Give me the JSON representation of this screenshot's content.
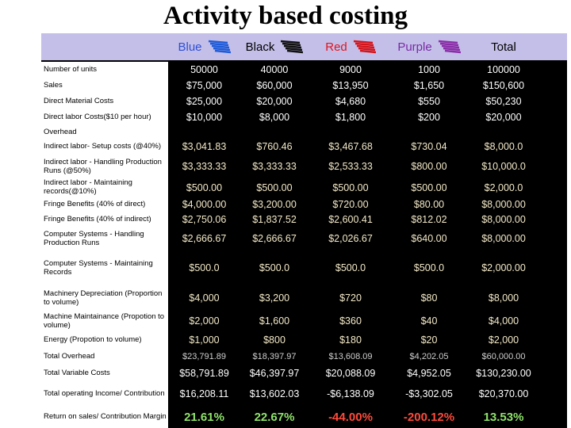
{
  "title": "Activity based costing",
  "table": {
    "header": [
      "Blue",
      "Black",
      "Red",
      "Purple",
      "Total"
    ],
    "rows": [
      {
        "label": "Number of units",
        "values": [
          "50000",
          "40000",
          "9000",
          "1000",
          "100000"
        ]
      },
      {
        "label": "Sales",
        "values": [
          "$75,000",
          "$60,000",
          "$13,950",
          "$1,650",
          "$150,600"
        ]
      },
      {
        "label": "Direct Material Costs",
        "values": [
          "$25,000",
          "$20,000",
          "$4,680",
          "$550",
          "$50,230"
        ]
      },
      {
        "label": "Direct labor Costs($10 per hour)",
        "values": [
          "$10,000",
          "$8,000",
          "$1,800",
          "$200",
          "$20,000"
        ]
      },
      {
        "label": "Overhead"
      },
      {
        "label": "Indirect labor- Setup costs (@40%)",
        "values": [
          "$3,041.83",
          "$760.46",
          "$3,467.68",
          "$730.04",
          "$8,000.0"
        ]
      },
      {
        "label": "Indirect labor - Handling Production Runs (@50%)",
        "values": [
          "$3,333.33",
          "$3,333.33",
          "$2,533.33",
          "$800.00",
          "$10,000.0"
        ]
      },
      {
        "label": "Indirect labor - Maintaining records(@10%)",
        "values": [
          "$500.00",
          "$500.00",
          "$500.00",
          "$500.00",
          "$2,000.0"
        ]
      },
      {
        "label": "Fringe Benefits (40% of direct)",
        "values": [
          "$4,000.00",
          "$3,200.00",
          "$720.00",
          "$80.00",
          "$8,000.00"
        ]
      },
      {
        "label": "Fringe Benefits (40% of indirect)",
        "values": [
          "$2,750.06",
          "$1,837.52",
          "$2,600.41",
          "$812.02",
          "$8,000.00"
        ]
      },
      {
        "label": "Computer Systems - Handling Production Runs",
        "values": [
          "$2,666.67",
          "$2,666.67",
          "$2,026.67",
          "$640.00",
          "$8,000.00"
        ]
      },
      {
        "label": "Computer Systems - Maintaining Records",
        "values": [
          "$500.0",
          "$500.0",
          "$500.0",
          "$500.0",
          "$2,000.00"
        ]
      },
      {
        "label": "Machinery Depreciation (Proportion to volume)",
        "values": [
          "$4,000",
          "$3,200",
          "$720",
          "$80",
          "$8,000"
        ]
      },
      {
        "label": "Machine Maintainance (Propotion to volume)",
        "values": [
          "$2,000",
          "$1,600",
          "$360",
          "$40",
          "$4,000"
        ]
      },
      {
        "label": "Energy (Propotion to volume)",
        "values": [
          "$1,000",
          "$800",
          "$180",
          "$20",
          "$2,000"
        ]
      },
      {
        "label": "Total Overhead",
        "values": [
          "$23,791.89",
          "$18,397.97",
          "$13,608.09",
          "$4,202.05",
          "$60,000.00"
        ]
      },
      {
        "label": "Total Variable Costs",
        "values": [
          "$58,791.89",
          "$46,397.97",
          "$20,088.09",
          "$4,952.05",
          "$130,230.00"
        ]
      },
      {
        "label": "Total operating Income/ Contribution",
        "values": [
          "$16,208.11",
          "$13,602.03",
          "-$6,138.09",
          "-$3,302.05",
          "$20,370.00"
        ]
      },
      {
        "label": "Return on sales/ Contribution Margin",
        "values": [
          "21.61%",
          "22.67%",
          "-44.00%",
          "-200.12%",
          "13.53%"
        ]
      }
    ]
  }
}
